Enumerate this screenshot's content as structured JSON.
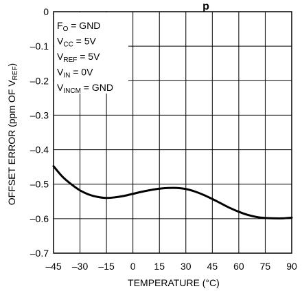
{
  "chart_data": {
    "type": "line",
    "title_fragment": "p",
    "xlabel": "TEMPERATURE (°C)",
    "ylabel": "OFFSET ERROR (ppm OF V",
    "ylabel_sub": "REF",
    "ylabel_end": ")",
    "xlim": [
      -45,
      90
    ],
    "ylim": [
      -0.7,
      0
    ],
    "x_ticks": [
      "–45",
      "–30",
      "–15",
      "0",
      "15",
      "30",
      "45",
      "60",
      "75",
      "90"
    ],
    "x_tick_values": [
      -45,
      -30,
      -15,
      0,
      15,
      30,
      45,
      60,
      75,
      90
    ],
    "y_ticks": [
      "0",
      "–0.1",
      "–0.2",
      "–0.3",
      "–0.4",
      "–0.5",
      "–0.6",
      "–0.7"
    ],
    "y_tick_values": [
      0,
      -0.1,
      -0.2,
      -0.3,
      -0.4,
      -0.5,
      -0.6,
      -0.7
    ],
    "grid": true,
    "conditions": [
      {
        "main": "F",
        "sub": "O",
        "rest": " = GND"
      },
      {
        "main": "V",
        "sub": "CC",
        "rest": " = 5V"
      },
      {
        "main": "V",
        "sub": "REF",
        "rest": " = 5V"
      },
      {
        "main": "V",
        "sub": "IN",
        "rest": " = 0V"
      },
      {
        "main": "V",
        "sub": "INCM",
        "rest": " = GND"
      }
    ],
    "series": [
      {
        "x": [
          -45,
          -40,
          -35,
          -30,
          -25,
          -20,
          -15,
          -10,
          -5,
          0,
          5,
          10,
          15,
          20,
          25,
          30,
          35,
          40,
          45,
          50,
          55,
          60,
          65,
          70,
          75,
          80,
          85,
          90
        ],
        "y": [
          -0.448,
          -0.478,
          -0.5,
          -0.518,
          -0.53,
          -0.537,
          -0.54,
          -0.538,
          -0.534,
          -0.528,
          -0.522,
          -0.517,
          -0.513,
          -0.511,
          -0.511,
          -0.514,
          -0.521,
          -0.531,
          -0.543,
          -0.556,
          -0.569,
          -0.58,
          -0.589,
          -0.595,
          -0.598,
          -0.599,
          -0.599,
          -0.597
        ]
      }
    ]
  }
}
